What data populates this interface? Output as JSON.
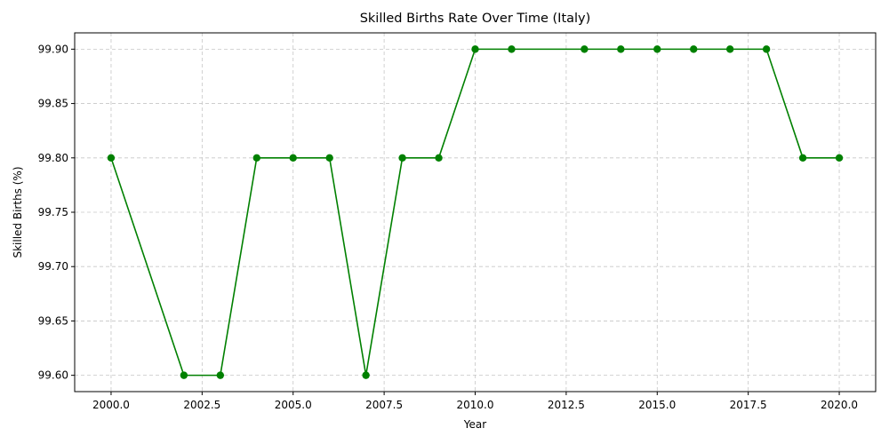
{
  "chart_data": {
    "type": "line",
    "title": "Skilled Births Rate Over Time (Italy)",
    "xlabel": "Year",
    "ylabel": "Skilled Births (%)",
    "x": [
      2000,
      2002,
      2003,
      2004,
      2005,
      2006,
      2007,
      2008,
      2009,
      2010,
      2011,
      2013,
      2014,
      2015,
      2016,
      2017,
      2018,
      2019,
      2020
    ],
    "series": [
      {
        "values": [
          99.8,
          99.6,
          99.6,
          99.8,
          99.8,
          99.8,
          99.6,
          99.8,
          99.8,
          99.9,
          99.9,
          99.9,
          99.9,
          99.9,
          99.9,
          99.9,
          99.9,
          99.8,
          99.8
        ],
        "color": "#008000",
        "marker": "circle"
      }
    ],
    "xlim": [
      1999,
      2021
    ],
    "ylim": [
      99.585,
      99.915
    ],
    "xticks": [
      "2000.0",
      "2002.5",
      "2005.0",
      "2007.5",
      "2010.0",
      "2012.5",
      "2015.0",
      "2017.5",
      "2020.0"
    ],
    "yticks": [
      "99.60",
      "99.65",
      "99.70",
      "99.75",
      "99.80",
      "99.85",
      "99.90"
    ],
    "grid": true,
    "grid_style": "dashed"
  }
}
